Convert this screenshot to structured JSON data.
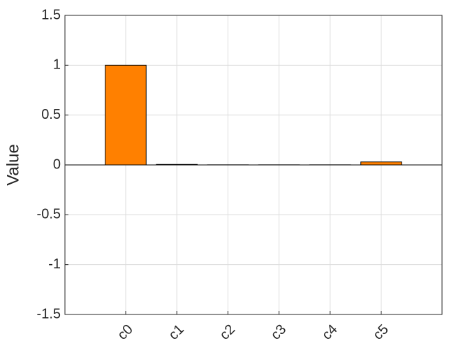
{
  "chart_data": {
    "type": "bar",
    "y_label": "Value",
    "categories": [
      "c0",
      "c1",
      "c2",
      "c3",
      "c4",
      "c5"
    ],
    "values": [
      1,
      0.005,
      0.001,
      0.001,
      0.001,
      0.03
    ],
    "color": "#ff8000",
    "ylim": [
      -1.5,
      1.5
    ],
    "yticks": [
      -1.5,
      -1,
      -0.5,
      0,
      0.5,
      1,
      1.5
    ],
    "grid": true
  }
}
